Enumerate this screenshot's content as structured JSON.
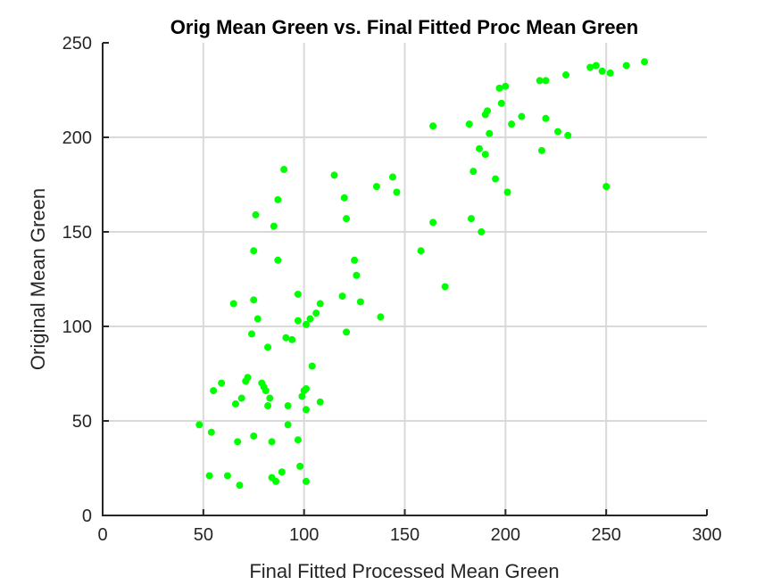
{
  "chart_data": {
    "type": "scatter",
    "title": "Orig Mean Green vs. Final Fitted Proc Mean Green",
    "xlabel": "Final Fitted Processed Mean Green",
    "ylabel": "Original Mean Green",
    "xlim": [
      0,
      300
    ],
    "ylim": [
      0,
      250
    ],
    "xticks": [
      0,
      50,
      100,
      150,
      200,
      250,
      300
    ],
    "yticks": [
      0,
      50,
      100,
      150,
      200,
      250
    ],
    "xtick_labels": [
      "0",
      "50",
      "100",
      "150",
      "200",
      "250",
      "300"
    ],
    "ytick_labels": [
      "0",
      "50",
      "100",
      "150",
      "200",
      "250"
    ],
    "grid": true,
    "marker_color": "#00ff00",
    "points": [
      [
        48,
        48
      ],
      [
        53,
        21
      ],
      [
        54,
        44
      ],
      [
        55,
        66
      ],
      [
        59,
        70
      ],
      [
        62,
        21
      ],
      [
        65,
        112
      ],
      [
        66,
        59
      ],
      [
        67,
        39
      ],
      [
        68,
        16
      ],
      [
        69,
        62
      ],
      [
        71,
        71
      ],
      [
        72,
        73
      ],
      [
        74,
        96
      ],
      [
        75,
        114
      ],
      [
        75,
        140
      ],
      [
        75,
        42
      ],
      [
        76,
        159
      ],
      [
        77,
        104
      ],
      [
        79,
        70
      ],
      [
        80,
        68
      ],
      [
        81,
        66
      ],
      [
        82,
        89
      ],
      [
        82,
        58
      ],
      [
        83,
        62
      ],
      [
        84,
        39
      ],
      [
        84,
        20
      ],
      [
        85,
        153
      ],
      [
        86,
        18
      ],
      [
        87,
        135
      ],
      [
        87,
        167
      ],
      [
        89,
        23
      ],
      [
        90,
        183
      ],
      [
        91,
        94
      ],
      [
        92,
        48
      ],
      [
        92,
        58
      ],
      [
        94,
        93
      ],
      [
        97,
        117
      ],
      [
        97,
        103
      ],
      [
        97,
        40
      ],
      [
        98,
        26
      ],
      [
        99,
        63
      ],
      [
        100,
        66
      ],
      [
        101,
        67
      ],
      [
        101,
        101
      ],
      [
        101,
        56
      ],
      [
        101,
        18
      ],
      [
        103,
        104
      ],
      [
        104,
        79
      ],
      [
        106,
        107
      ],
      [
        108,
        112
      ],
      [
        108,
        60
      ],
      [
        115,
        180
      ],
      [
        119,
        116
      ],
      [
        120,
        168
      ],
      [
        121,
        157
      ],
      [
        121,
        97
      ],
      [
        125,
        135
      ],
      [
        126,
        127
      ],
      [
        128,
        113
      ],
      [
        136,
        174
      ],
      [
        138,
        105
      ],
      [
        144,
        179
      ],
      [
        146,
        171
      ],
      [
        158,
        140
      ],
      [
        164,
        206
      ],
      [
        164,
        155
      ],
      [
        170,
        121
      ],
      [
        182,
        207
      ],
      [
        183,
        157
      ],
      [
        184,
        182
      ],
      [
        187,
        194
      ],
      [
        188,
        150
      ],
      [
        190,
        212
      ],
      [
        190,
        191
      ],
      [
        191,
        214
      ],
      [
        192,
        202
      ],
      [
        195,
        178
      ],
      [
        197,
        226
      ],
      [
        198,
        218
      ],
      [
        200,
        227
      ],
      [
        201,
        171
      ],
      [
        203,
        207
      ],
      [
        208,
        211
      ],
      [
        217,
        230
      ],
      [
        218,
        193
      ],
      [
        220,
        230
      ],
      [
        220,
        210
      ],
      [
        226,
        203
      ],
      [
        230,
        233
      ],
      [
        231,
        201
      ],
      [
        242,
        237
      ],
      [
        245,
        238
      ],
      [
        248,
        235
      ],
      [
        250,
        174
      ],
      [
        252,
        234
      ],
      [
        260,
        238
      ],
      [
        269,
        240
      ]
    ]
  }
}
